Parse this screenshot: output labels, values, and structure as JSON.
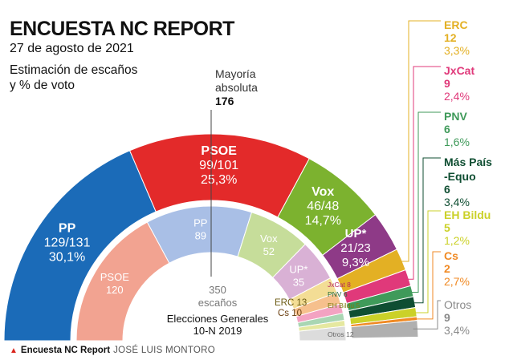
{
  "title": "ENCUESTA NC REPORT",
  "date": "27 de agosto de 2021",
  "subtitle_line1": "Estimación de escaños",
  "subtitle_line2": "y % de voto",
  "majority_label_1": "Mayoría",
  "majority_label_2": "absoluta",
  "majority_value": "176",
  "center_total": "350",
  "center_unit": "escaños",
  "prev_title_1": "Elecciones Generales",
  "prev_title_2": "10-N 2019",
  "footer_source": "Encuesta NC Report",
  "footer_author": "JOSÉ LUIS MONTORO",
  "chart_data": {
    "type": "pie",
    "title": "ENCUESTA NC REPORT",
    "total_seats": 350,
    "majority": 176,
    "parties": [
      {
        "name": "PP",
        "seats_label": "129/131",
        "pct_label": "30,1%",
        "seats": 130,
        "pct": 30.1,
        "color": "#1b6bb8"
      },
      {
        "name": "PSOE",
        "seats_label": "99/101",
        "pct_label": "25,3%",
        "seats": 100,
        "pct": 25.3,
        "color": "#e32a2a"
      },
      {
        "name": "Vox",
        "seats_label": "46/48",
        "pct_label": "14,7%",
        "seats": 47,
        "pct": 14.7,
        "color": "#7cb22f"
      },
      {
        "name": "UP*",
        "seats_label": "21/23",
        "pct_label": "9,3%",
        "seats": 22,
        "pct": 9.3,
        "color": "#8e3a87"
      },
      {
        "name": "ERC",
        "seats_label": "12",
        "pct_label": "3,3%",
        "seats": 12,
        "pct": 3.3,
        "color": "#e3b024"
      },
      {
        "name": "JxCat",
        "seats_label": "9",
        "pct_label": "2,4%",
        "seats": 9,
        "pct": 2.4,
        "color": "#e0397a"
      },
      {
        "name": "PNV",
        "seats_label": "6",
        "pct_label": "1,6%",
        "seats": 6,
        "pct": 1.6,
        "color": "#3f9a5a"
      },
      {
        "name": "Más País-Equo",
        "seats_label": "6",
        "pct_label": "3,4%",
        "seats": 6,
        "pct": 3.4,
        "color": "#0f4e32"
      },
      {
        "name": "EH Bildu",
        "seats_label": "5",
        "pct_label": "1,2%",
        "seats": 5,
        "pct": 1.2,
        "color": "#cbd128"
      },
      {
        "name": "Cs",
        "seats_label": "2",
        "pct_label": "2,7%",
        "seats": 2,
        "pct": 2.7,
        "color": "#f08a24"
      },
      {
        "name": "Otros",
        "seats_label": "9",
        "pct_label": "3,4%",
        "seats": 9,
        "pct": 3.4,
        "color": "#b0b0b0"
      }
    ],
    "previous": [
      {
        "name": "PSOE",
        "seats": 120,
        "color": "#f2a391"
      },
      {
        "name": "PP",
        "seats": 89,
        "color": "#a9bfe6"
      },
      {
        "name": "Vox",
        "seats": 52,
        "color": "#c6dd9a"
      },
      {
        "name": "UP*",
        "seats": 35,
        "color": "#d9b1d5"
      },
      {
        "name": "ERC",
        "seats": 13,
        "color": "#f3dd95"
      },
      {
        "name": "Cs",
        "seats": 10,
        "color": "#f6c08d"
      },
      {
        "name": "JxCat",
        "seats": 8,
        "color": "#f3a3c2"
      },
      {
        "name": "PNV",
        "seats": 6,
        "color": "#a9d6b3"
      },
      {
        "name": "EH Bildu",
        "seats": 5,
        "color": "#e5e8a0"
      },
      {
        "name": "Otros",
        "seats": 12,
        "color": "#dcdcdc"
      }
    ]
  }
}
